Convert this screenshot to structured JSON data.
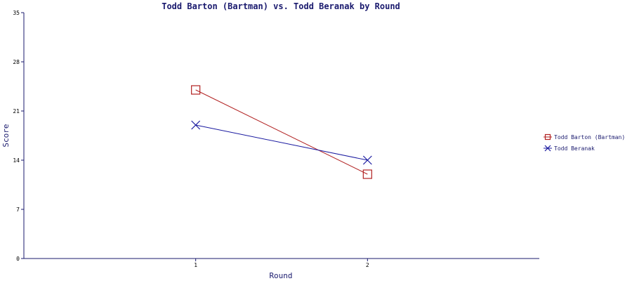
{
  "chart_data": {
    "type": "line",
    "title": "Todd Barton (Bartman) vs. Todd Beranak by Round",
    "xlabel": "Round",
    "ylabel": "Score",
    "categories": [
      "1",
      "2"
    ],
    "xlim": [
      0,
      3
    ],
    "ylim": [
      0,
      35
    ],
    "yticks": [
      0,
      7,
      14,
      21,
      28,
      35
    ],
    "grid": false,
    "legend_position": "right",
    "series": [
      {
        "name": "Todd Barton (Bartman)",
        "values": [
          24,
          12
        ],
        "color": "#b22222",
        "marker": "square"
      },
      {
        "name": "Todd Beranak",
        "values": [
          19,
          14
        ],
        "color": "#1a1aa0",
        "marker": "x"
      }
    ]
  }
}
